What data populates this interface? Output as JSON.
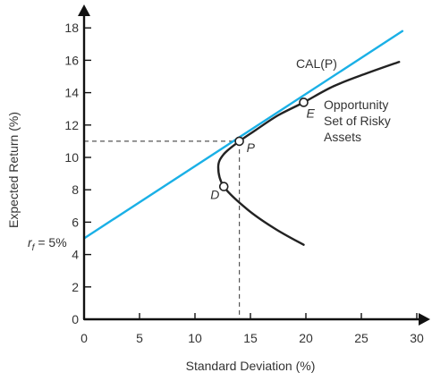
{
  "chart_data": {
    "type": "line",
    "xlabel": "Standard Deviation (%)",
    "ylabel": "Expected Return (%)",
    "xlim": [
      0,
      30
    ],
    "ylim": [
      0,
      18
    ],
    "x_ticks": [
      0,
      5,
      10,
      15,
      20,
      25,
      30
    ],
    "y_ticks": [
      0,
      2,
      4,
      6,
      8,
      10,
      12,
      14,
      16,
      18
    ],
    "grid": false,
    "rf_label": {
      "prefix": "r",
      "subscript": "f",
      "suffix": " = 5%",
      "value": 5
    },
    "series": [
      {
        "name": "CAL(P)",
        "kind": "line",
        "color": "#1ab0e6",
        "points": [
          [
            0,
            5
          ],
          [
            28.7,
            17.8
          ]
        ]
      },
      {
        "name": "Opportunity Set of Risky Assets",
        "label_lines": [
          "Opportunity",
          "Set of Risky",
          "Assets"
        ],
        "kind": "curve",
        "color": "#222222",
        "points": [
          [
            19.8,
            4.6
          ],
          [
            17.2,
            5.6
          ],
          [
            14.7,
            6.8
          ],
          [
            12.6,
            8.2
          ],
          [
            12.1,
            9.4
          ],
          [
            12.6,
            10.2
          ],
          [
            14.0,
            11.0
          ],
          [
            15.5,
            11.7
          ],
          [
            17.5,
            12.6
          ],
          [
            19.8,
            13.4
          ],
          [
            22.5,
            14.4
          ],
          [
            25.5,
            15.2
          ],
          [
            28.4,
            15.9
          ]
        ]
      }
    ],
    "points": [
      {
        "name": "P",
        "x": 14.0,
        "y": 11.0
      },
      {
        "name": "E",
        "x": 19.8,
        "y": 13.4
      },
      {
        "name": "D",
        "x": 12.6,
        "y": 8.2
      }
    ],
    "guides": {
      "point": "P",
      "x": 14.0,
      "y": 11.0
    }
  }
}
